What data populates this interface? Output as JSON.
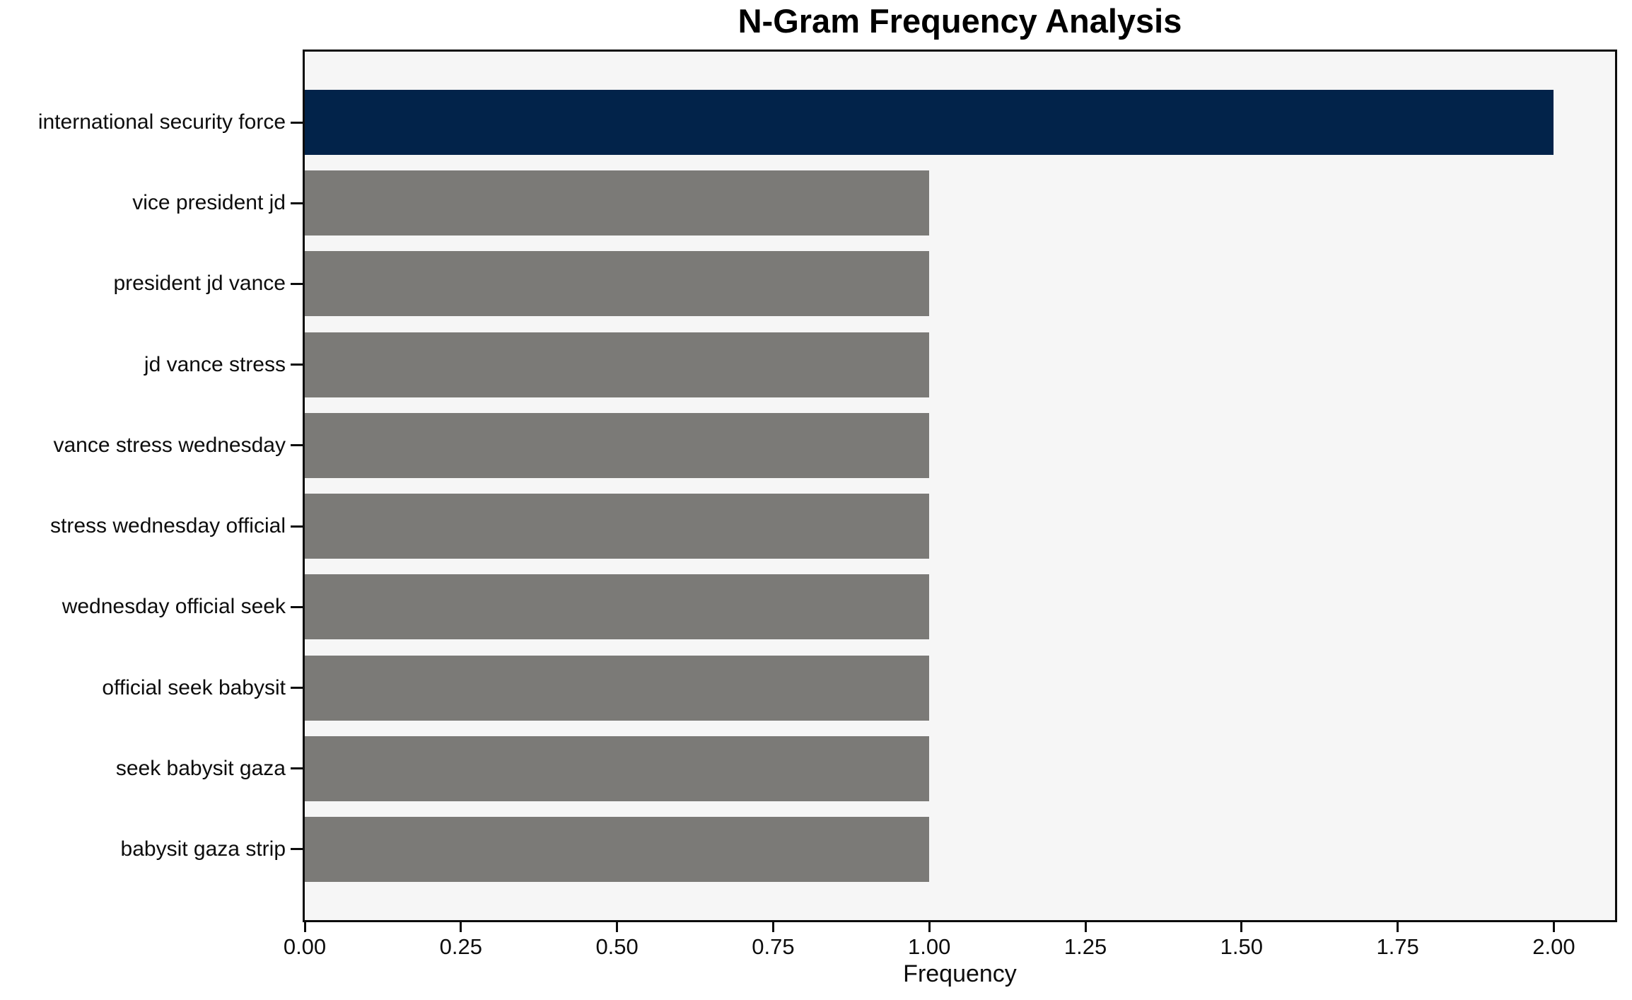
{
  "figure": {
    "background": "#ffffff",
    "plot_background": "#f6f6f6",
    "axis_color": "#0c0c0c",
    "text_color": "#0d0d0d"
  },
  "chart_data": {
    "type": "bar",
    "orientation": "horizontal",
    "title": "N-Gram Frequency Analysis",
    "xlabel": "Frequency",
    "ylabel": "",
    "categories": [
      "international security force",
      "vice president jd",
      "president jd vance",
      "jd vance stress",
      "vance stress wednesday",
      "stress wednesday official",
      "wednesday official seek",
      "official seek babysit",
      "seek babysit gaza",
      "babysit gaza strip"
    ],
    "values": [
      2,
      1,
      1,
      1,
      1,
      1,
      1,
      1,
      1,
      1
    ],
    "bar_colors": [
      "#02234a",
      "#7b7a77",
      "#7b7a77",
      "#7b7a77",
      "#7b7a77",
      "#7b7a77",
      "#7b7a77",
      "#7b7a77",
      "#7b7a77",
      "#7b7a77"
    ],
    "highlight_color": "#02234a",
    "default_bar_color": "#7b7a77",
    "xlim": [
      0,
      2.098
    ],
    "x_ticks": [
      0,
      0.25,
      0.5,
      0.75,
      1,
      1.25,
      1.5,
      1.75,
      2
    ],
    "x_tick_labels": [
      "0.00",
      "0.25",
      "0.50",
      "0.75",
      "1.00",
      "1.25",
      "1.50",
      "1.75",
      "2.00"
    ],
    "grid": false,
    "legend": false
  }
}
